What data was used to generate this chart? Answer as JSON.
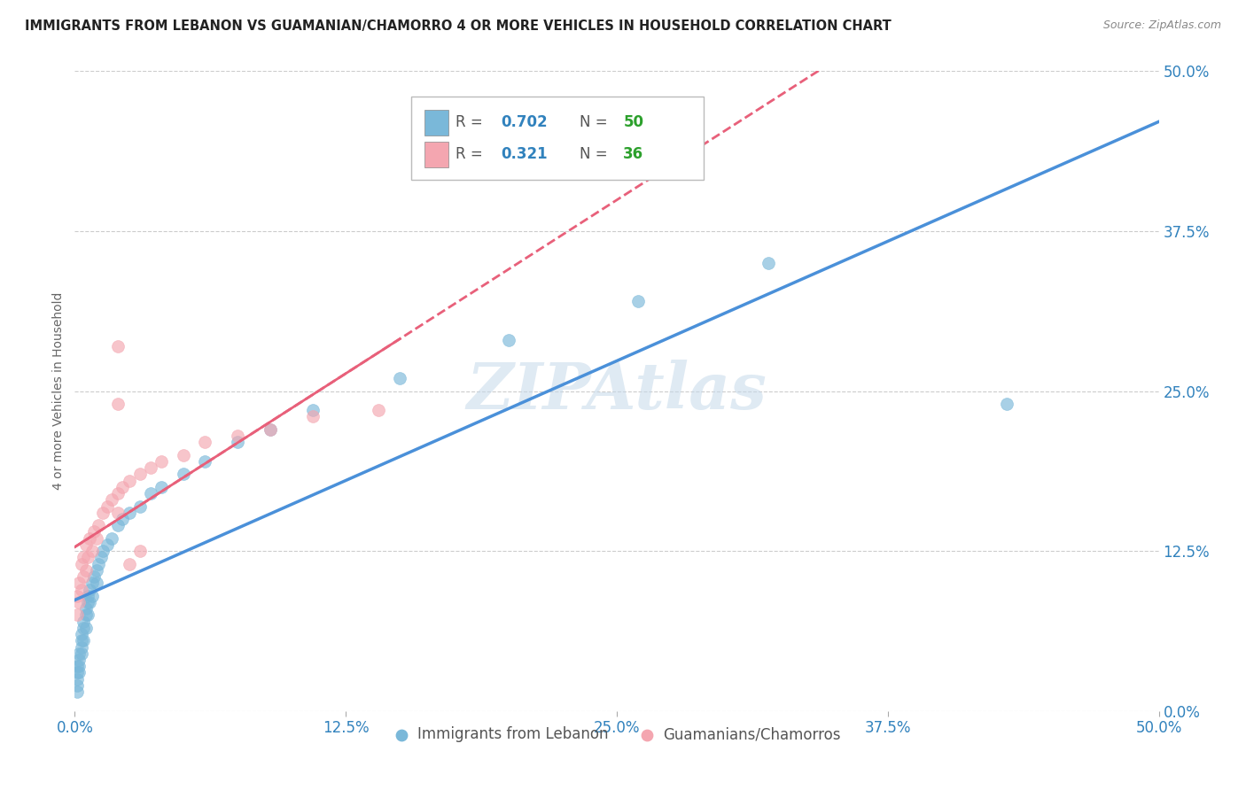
{
  "title": "IMMIGRANTS FROM LEBANON VS GUAMANIAN/CHAMORRO 4 OR MORE VEHICLES IN HOUSEHOLD CORRELATION CHART",
  "source": "Source: ZipAtlas.com",
  "ylabel": "4 or more Vehicles in Household",
  "xlim": [
    0.0,
    0.5
  ],
  "ylim": [
    0.0,
    0.5
  ],
  "xtick_labels": [
    "0.0%",
    "",
    "12.5%",
    "",
    "25.0%",
    "",
    "37.5%",
    "",
    "50.0%"
  ],
  "ytick_labels": [
    "0.0%",
    "12.5%",
    "25.0%",
    "37.5%",
    "50.0%"
  ],
  "xtick_vals": [
    0.0,
    0.0625,
    0.125,
    0.1875,
    0.25,
    0.3125,
    0.375,
    0.4375,
    0.5
  ],
  "ytick_vals": [
    0.0,
    0.125,
    0.25,
    0.375,
    0.5
  ],
  "series1_color": "#7ab8d9",
  "series2_color": "#f4a6b0",
  "series1_label": "Immigrants from Lebanon",
  "series2_label": "Guamanians/Chamorros",
  "R1": 0.702,
  "N1": 50,
  "R2": 0.321,
  "N2": 36,
  "legend_R_color": "#3182bd",
  "legend_N_color": "#2ca02c",
  "watermark": "ZIPAtlas",
  "background_color": "#ffffff",
  "grid_color": "#cccccc",
  "reg1_color": "#4a90d9",
  "reg2_color": "#e8607a",
  "lb_x": [
    0.001,
    0.001,
    0.001,
    0.001,
    0.001,
    0.002,
    0.002,
    0.002,
    0.002,
    0.003,
    0.003,
    0.003,
    0.003,
    0.004,
    0.004,
    0.004,
    0.005,
    0.005,
    0.005,
    0.006,
    0.006,
    0.006,
    0.007,
    0.007,
    0.008,
    0.008,
    0.009,
    0.01,
    0.01,
    0.011,
    0.012,
    0.013,
    0.015,
    0.017,
    0.02,
    0.022,
    0.025,
    0.03,
    0.035,
    0.04,
    0.05,
    0.06,
    0.075,
    0.09,
    0.11,
    0.15,
    0.2,
    0.26,
    0.32,
    0.43
  ],
  "lb_y": [
    0.02,
    0.025,
    0.03,
    0.035,
    0.015,
    0.04,
    0.035,
    0.045,
    0.03,
    0.05,
    0.055,
    0.045,
    0.06,
    0.065,
    0.055,
    0.07,
    0.075,
    0.065,
    0.08,
    0.085,
    0.075,
    0.09,
    0.095,
    0.085,
    0.1,
    0.09,
    0.105,
    0.11,
    0.1,
    0.115,
    0.12,
    0.125,
    0.13,
    0.135,
    0.145,
    0.15,
    0.155,
    0.16,
    0.17,
    0.175,
    0.185,
    0.195,
    0.21,
    0.22,
    0.235,
    0.26,
    0.29,
    0.32,
    0.35,
    0.24
  ],
  "gm_x": [
    0.001,
    0.001,
    0.002,
    0.002,
    0.003,
    0.003,
    0.004,
    0.004,
    0.005,
    0.005,
    0.006,
    0.007,
    0.008,
    0.009,
    0.01,
    0.011,
    0.013,
    0.015,
    0.017,
    0.02,
    0.022,
    0.025,
    0.03,
    0.035,
    0.04,
    0.05,
    0.06,
    0.075,
    0.09,
    0.11,
    0.14,
    0.02,
    0.025,
    0.03,
    0.02,
    0.02
  ],
  "gm_y": [
    0.075,
    0.09,
    0.085,
    0.1,
    0.095,
    0.115,
    0.105,
    0.12,
    0.11,
    0.13,
    0.12,
    0.135,
    0.125,
    0.14,
    0.135,
    0.145,
    0.155,
    0.16,
    0.165,
    0.17,
    0.175,
    0.18,
    0.185,
    0.19,
    0.195,
    0.2,
    0.21,
    0.215,
    0.22,
    0.23,
    0.235,
    0.285,
    0.115,
    0.125,
    0.24,
    0.155
  ]
}
